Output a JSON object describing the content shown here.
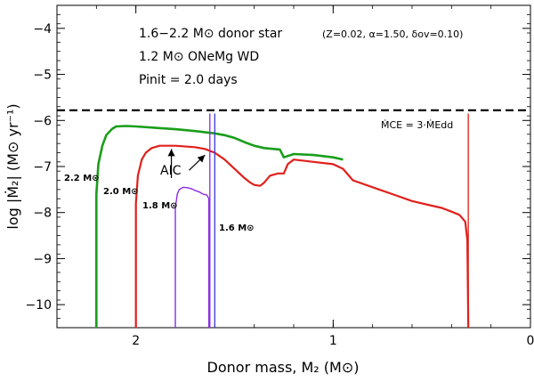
{
  "chart_data": {
    "type": "line",
    "xlabel": "Donor mass, M₂ (M⊙)",
    "ylabel": "log |Ṁ₂| (M⊙ yr⁻¹)",
    "xlim": [
      2.4,
      0
    ],
    "ylim": [
      -10.5,
      -3.5
    ],
    "x_ticks": [
      2,
      1,
      0
    ],
    "y_ticks": [
      -10,
      -9,
      -8,
      -7,
      -6,
      -5,
      -4
    ],
    "x_tick_labels": [
      "2",
      "1",
      "0"
    ],
    "y_tick_labels": [
      "−10",
      "−9",
      "−8",
      "−7",
      "−6",
      "−5",
      "−4"
    ],
    "annotations": {
      "line1_main": "1.6−2.2 M⊙ donor star",
      "line1_params": "(Z=0.02, α=1.50, δov=0.10)",
      "line2": "1.2 M⊙ ONeMg WD",
      "line3": "Pinit = 2.0 days",
      "mce_label": "ṀCE = 3·ṀEdd",
      "aic_label": "AIC"
    },
    "mce_level": -5.78,
    "series": [
      {
        "name": "2.2 M⊙",
        "color": "#1a9e1a",
        "x": [
          2.2,
          2.2,
          2.19,
          2.17,
          2.15,
          2.12,
          2.1,
          2.05,
          2.0,
          1.9,
          1.8,
          1.7,
          1.6,
          1.55,
          1.5,
          1.45,
          1.4,
          1.35,
          1.3,
          1.27,
          1.25,
          1.2,
          1.1,
          1.0,
          0.95
        ],
        "y": [
          -10.5,
          -7.6,
          -6.95,
          -6.55,
          -6.32,
          -6.18,
          -6.13,
          -6.12,
          -6.13,
          -6.16,
          -6.19,
          -6.23,
          -6.28,
          -6.32,
          -6.38,
          -6.47,
          -6.55,
          -6.6,
          -6.62,
          -6.63,
          -6.8,
          -6.73,
          -6.75,
          -6.8,
          -6.85
        ]
      },
      {
        "name": "2.0 M⊙",
        "color": "#e0201b",
        "x": [
          2.0,
          2.0,
          1.99,
          1.97,
          1.95,
          1.92,
          1.88,
          1.8,
          1.7,
          1.65,
          1.6,
          1.55,
          1.5,
          1.45,
          1.42,
          1.4,
          1.37,
          1.35,
          1.32,
          1.28,
          1.25,
          1.23,
          1.2,
          1.1,
          1.0,
          0.95,
          0.9,
          0.8,
          0.7,
          0.6,
          0.5,
          0.45,
          0.4,
          0.36,
          0.33,
          0.32,
          0.315
        ],
        "y": [
          -10.5,
          -7.8,
          -7.2,
          -6.85,
          -6.7,
          -6.6,
          -6.55,
          -6.55,
          -6.58,
          -6.62,
          -6.7,
          -6.85,
          -7.05,
          -7.25,
          -7.35,
          -7.4,
          -7.42,
          -7.35,
          -7.2,
          -7.15,
          -7.15,
          -6.95,
          -6.85,
          -6.9,
          -6.95,
          -7.05,
          -7.3,
          -7.45,
          -7.6,
          -7.75,
          -7.85,
          -7.9,
          -7.98,
          -8.05,
          -8.2,
          -8.6,
          -10.5
        ]
      },
      {
        "name": "1.8 M⊙",
        "color": "#8a2be2",
        "x": [
          1.8,
          1.8,
          1.79,
          1.78,
          1.76,
          1.74,
          1.72,
          1.7,
          1.68,
          1.66,
          1.64,
          1.63,
          1.63
        ],
        "y": [
          -10.5,
          -7.9,
          -7.6,
          -7.5,
          -7.45,
          -7.46,
          -7.48,
          -7.52,
          -7.55,
          -7.6,
          -7.62,
          -7.7,
          -10.5
        ]
      },
      {
        "name": "1.6 M⊙",
        "color": "#3a3ad6",
        "x": [
          1.6,
          1.6
        ],
        "y": [
          -10.5,
          -10.5
        ]
      }
    ],
    "vertical_lines": [
      {
        "name": "purple-spike",
        "color": "#8a2be2",
        "x": 1.625,
        "y": [
          -10.5,
          -5.85
        ]
      },
      {
        "name": "blue-spike",
        "color": "#3a3ad6",
        "x": 1.6,
        "y": [
          -10.5,
          -5.85
        ]
      },
      {
        "name": "red-spike",
        "color": "#e0201b",
        "x": 0.315,
        "y": [
          -10.5,
          -5.85
        ]
      }
    ],
    "aic_arrows": [
      {
        "name": "aic-arrow-1",
        "from": [
          1.82,
          -7.25
        ],
        "to": [
          1.82,
          -6.62
        ]
      },
      {
        "name": "aic-arrow-2",
        "from": [
          1.73,
          -7.08
        ],
        "to": [
          1.65,
          -6.75
        ]
      }
    ],
    "curve_labels": [
      "2.2 M⊙",
      "2.0 M⊙",
      "1.8 M⊙",
      "1.6 M⊙"
    ]
  }
}
